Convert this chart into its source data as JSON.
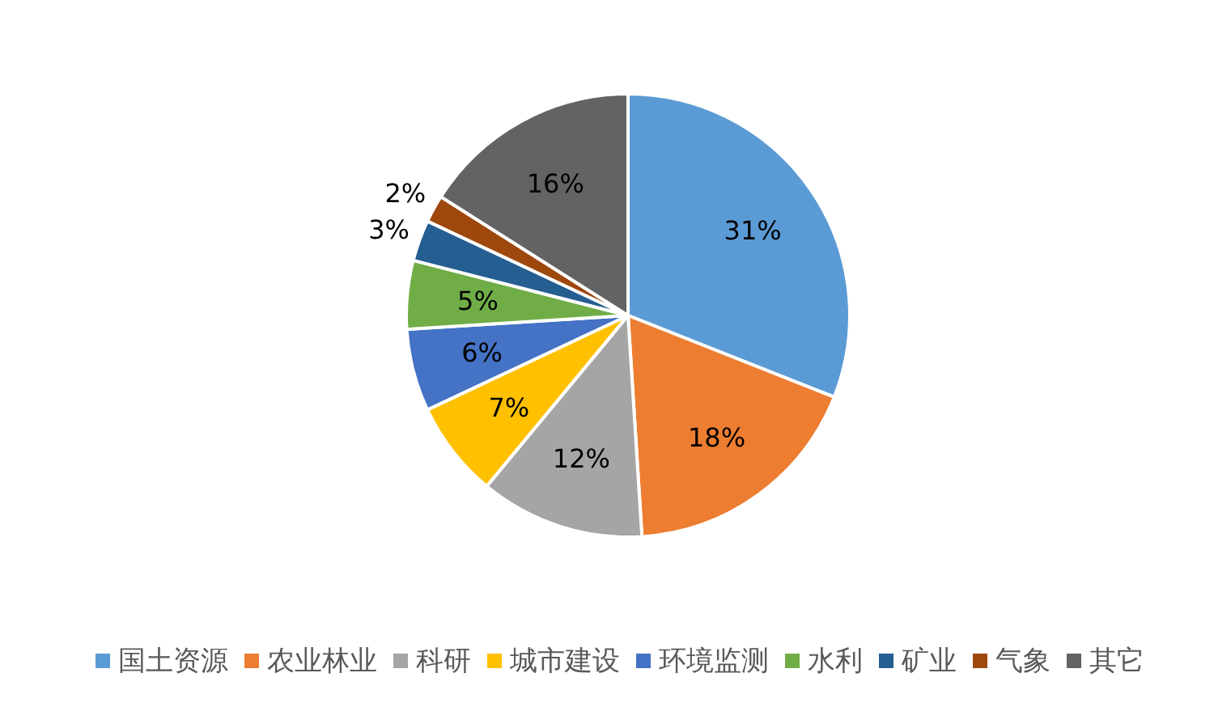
{
  "chart_data": {
    "type": "pie",
    "categories": [
      "国土资源",
      "农业林业",
      "科研",
      "城市建设",
      "环境监测",
      "水利",
      "矿业",
      "气象",
      "其它"
    ],
    "values": [
      31,
      18,
      12,
      7,
      6,
      5,
      3,
      2,
      16
    ],
    "colors": [
      "#5b9bd5",
      "#ed7d31",
      "#a5a5a5",
      "#ffc000",
      "#4472c4",
      "#70ad47",
      "#255e91",
      "#9e480e",
      "#636363"
    ],
    "value_labels": [
      "31%",
      "18%",
      "12%",
      "7%",
      "6%",
      "5%",
      "3%",
      "2%",
      "16%"
    ],
    "legend": "bottom"
  }
}
